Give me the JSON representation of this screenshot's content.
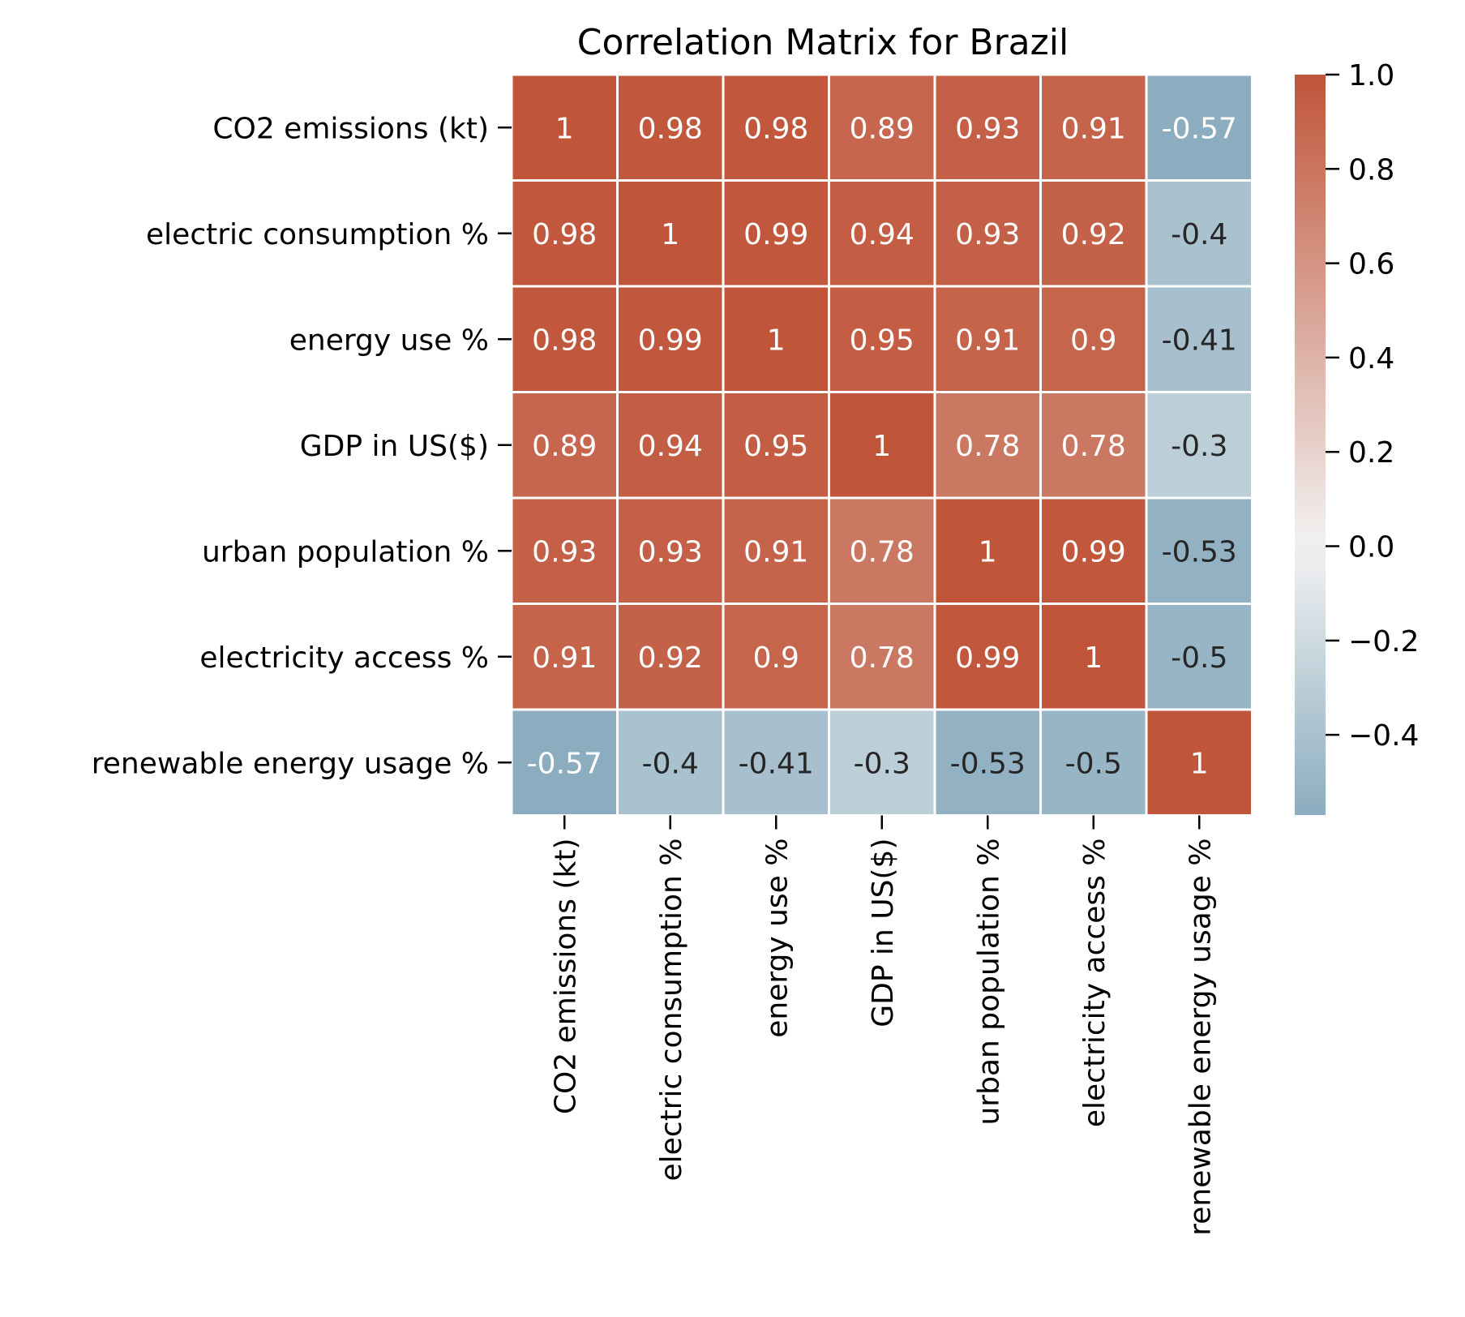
{
  "chart_data": {
    "type": "heatmap",
    "title": "Correlation Matrix for Brazil",
    "xlabel": "",
    "ylabel": "",
    "variables": [
      "CO2 emissions (kt)",
      "electric consumption %",
      "energy use %",
      "GDP in US($)",
      "urban population %",
      "electricity access %",
      "renewable energy usage %"
    ],
    "matrix": [
      [
        1,
        0.98,
        0.98,
        0.89,
        0.93,
        0.91,
        -0.57
      ],
      [
        0.98,
        1,
        0.99,
        0.94,
        0.93,
        0.92,
        -0.4
      ],
      [
        0.98,
        0.99,
        1,
        0.95,
        0.91,
        0.9,
        -0.41
      ],
      [
        0.89,
        0.94,
        0.95,
        1,
        0.78,
        0.78,
        -0.3
      ],
      [
        0.93,
        0.93,
        0.91,
        0.78,
        1,
        0.99,
        -0.53
      ],
      [
        0.91,
        0.92,
        0.9,
        0.78,
        0.99,
        1,
        -0.5
      ],
      [
        -0.57,
        -0.4,
        -0.41,
        -0.3,
        -0.53,
        -0.5,
        1
      ]
    ],
    "colorbar": {
      "min": -0.57,
      "max": 1.0,
      "ticks": [
        1.0,
        0.8,
        0.6,
        0.4,
        0.2,
        0.0,
        -0.2,
        -0.4
      ],
      "tick_labels": [
        "1.0",
        "0.8",
        "0.6",
        "0.4",
        "0.2",
        "0.0",
        "−0.2",
        "−0.4"
      ]
    },
    "colormap": {
      "positive": "#c0553a",
      "center": "#f2f2f2",
      "negative": "#8badbf"
    },
    "annotation_colors": {
      "light": "#ffffff",
      "dark": "#262626"
    },
    "grid_line_color": "#ffffff",
    "legend": "colorbar-right"
  }
}
